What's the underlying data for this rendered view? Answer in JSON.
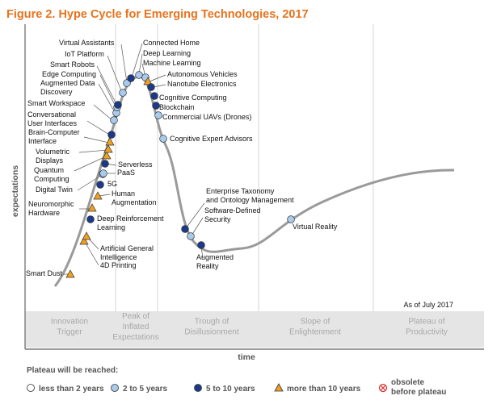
{
  "title": "Figure 2. Hype Cycle for Emerging Technologies, 2017",
  "colors": {
    "title": "#e8731c",
    "curve": "#9a9a9a",
    "less_than_2": "#ffffff",
    "two_to_five": "#a9cbec",
    "five_to_ten": "#1b3b8a",
    "more_than_10": "#f0a020",
    "obsolete": "#d83a3a"
  },
  "y_axis_label": "expectations",
  "x_axis_label": "time",
  "as_of": "As of July 2017",
  "phases": [
    {
      "id": "innovation",
      "lines": [
        "Innovation",
        "Trigger"
      ]
    },
    {
      "id": "peak",
      "lines": [
        "Peak of",
        "Inflated",
        "Expectations"
      ]
    },
    {
      "id": "trough",
      "lines": [
        "Trough of",
        "Disillusionment"
      ]
    },
    {
      "id": "slope",
      "lines": [
        "Slope of",
        "Enlightenment"
      ]
    },
    {
      "id": "plateau",
      "lines": [
        "Plateau of",
        "Productivity"
      ]
    }
  ],
  "legend": {
    "heading": "Plateau will be reached:",
    "items": [
      {
        "key": "less_than_2",
        "shape": "circle-icon",
        "label": "less than 2 years"
      },
      {
        "key": "two_to_five",
        "shape": "circle-icon",
        "label": "2 to 5 years"
      },
      {
        "key": "five_to_ten",
        "shape": "circle-icon",
        "label": "5 to 10 years"
      },
      {
        "key": "more_than_10",
        "shape": "triangle-icon",
        "label": "more than 10 years"
      },
      {
        "key": "obsolete",
        "shape": "crossed-circle-icon",
        "lines": [
          "obsolete",
          "before plateau"
        ]
      }
    ]
  },
  "technologies": [
    {
      "lines": [
        "Smart Dust"
      ],
      "category": "more_than_10"
    },
    {
      "lines": [
        "4D Printing"
      ],
      "category": "more_than_10"
    },
    {
      "lines": [
        "Artificial General",
        "Intelligence"
      ],
      "category": "more_than_10"
    },
    {
      "lines": [
        "Deep Reinforcement",
        "Learning"
      ],
      "category": "five_to_ten"
    },
    {
      "lines": [
        "Neuromorphic",
        "Hardware"
      ],
      "category": "more_than_10"
    },
    {
      "lines": [
        "Human",
        "Augmentation"
      ],
      "category": "more_than_10"
    },
    {
      "lines": [
        "5G"
      ],
      "category": "five_to_ten"
    },
    {
      "lines": [
        "Digital Twin"
      ],
      "category": "two_to_five"
    },
    {
      "lines": [
        "PaaS"
      ],
      "category": "two_to_five"
    },
    {
      "lines": [
        "Serverless"
      ],
      "category": "five_to_ten"
    },
    {
      "lines": [
        "Quantum",
        "Computing"
      ],
      "category": "more_than_10"
    },
    {
      "lines": [
        "Volumetric",
        "Displays"
      ],
      "category": "more_than_10"
    },
    {
      "lines": [
        "Brain-Computer",
        "Interface"
      ],
      "category": "more_than_10"
    },
    {
      "lines": [
        "Conversational",
        "User Interfaces"
      ],
      "category": "five_to_ten"
    },
    {
      "lines": [
        "Smart Workspace"
      ],
      "category": "two_to_five"
    },
    {
      "lines": [
        "Augmented Data",
        "Discovery"
      ],
      "category": "two_to_five"
    },
    {
      "lines": [
        "Edge Computing"
      ],
      "category": "two_to_five"
    },
    {
      "lines": [
        "Smart Robots"
      ],
      "category": "five_to_ten"
    },
    {
      "lines": [
        "IoT Platform"
      ],
      "category": "two_to_five"
    },
    {
      "lines": [
        "Virtual Assistants"
      ],
      "category": "two_to_five"
    },
    {
      "lines": [
        "Connected Home"
      ],
      "category": "five_to_ten"
    },
    {
      "lines": [
        "Deep Learning"
      ],
      "category": "two_to_five"
    },
    {
      "lines": [
        "Machine Learning"
      ],
      "category": "two_to_five"
    },
    {
      "lines": [
        "Autonomous Vehicles"
      ],
      "category": "more_than_10"
    },
    {
      "lines": [
        "Nanotube Electronics"
      ],
      "category": "five_to_ten"
    },
    {
      "lines": [
        "Cognitive Computing"
      ],
      "category": "five_to_ten"
    },
    {
      "lines": [
        "Blockchain"
      ],
      "category": "five_to_ten"
    },
    {
      "lines": [
        "Commercial UAVs (Drones)"
      ],
      "category": "two_to_five"
    },
    {
      "lines": [
        "Cognitive Expert Advisors"
      ],
      "category": "two_to_five"
    },
    {
      "lines": [
        "Enterprise Taxonomy",
        "and Ontology Management"
      ],
      "category": "five_to_ten"
    },
    {
      "lines": [
        "Software-Defined",
        "Security"
      ],
      "category": "two_to_five"
    },
    {
      "lines": [
        "Augmented",
        "Reality"
      ],
      "category": "five_to_ten"
    },
    {
      "lines": [
        "Virtual Reality"
      ],
      "category": "two_to_five"
    }
  ]
}
